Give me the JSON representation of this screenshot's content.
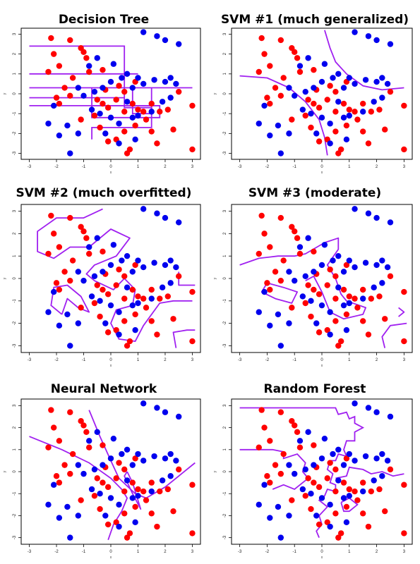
{
  "colors": {
    "class_a": "#ff0000",
    "class_b": "#0000ee",
    "boundary": "#a020f0",
    "frame": "#000000"
  },
  "axis": {
    "x_ticks": [
      "-3",
      "-2",
      "-1",
      "0",
      "1",
      "2",
      "3"
    ],
    "y_ticks": [
      "-3",
      "-2",
      "-1",
      "0",
      "1",
      "2",
      "3"
    ],
    "xlabel": "x",
    "ylabel": "y"
  },
  "panels": [
    {
      "title": "Decision Tree"
    },
    {
      "title": "SVM #1 (much generalized)"
    },
    {
      "title": "SVM #2 (much overfitted)"
    },
    {
      "title": "SVM #3 (moderate)"
    },
    {
      "title": "Neural Network"
    },
    {
      "title": "Random Forest"
    }
  ],
  "chart_data": {
    "type": "scatter",
    "xlim": [
      -3.3,
      3.3
    ],
    "ylim": [
      -3.3,
      3.3
    ],
    "grid": false,
    "series": [
      {
        "color": "#ff0000",
        "points": [
          [
            -2.2,
            2.8
          ],
          [
            -2.1,
            2.0
          ],
          [
            -1.5,
            2.7
          ],
          [
            -1.1,
            2.3
          ],
          [
            -1.0,
            2.1
          ],
          [
            -0.9,
            1.8
          ],
          [
            -1.9,
            1.4
          ],
          [
            -0.8,
            1.1
          ],
          [
            -1.4,
            0.8
          ],
          [
            -0.3,
            1.2
          ],
          [
            -2.3,
            1.1
          ],
          [
            -1.7,
            0.3
          ],
          [
            -0.2,
            0.2
          ],
          [
            -0.5,
            -0.3
          ],
          [
            -0.3,
            -0.5
          ],
          [
            -0.1,
            -0.7
          ],
          [
            0.2,
            -0.3
          ],
          [
            0.5,
            -0.9
          ],
          [
            0.8,
            -0.5
          ],
          [
            1.0,
            -0.8
          ],
          [
            1.2,
            -0.9
          ],
          [
            1.5,
            -0.5
          ],
          [
            1.8,
            -0.9
          ],
          [
            2.1,
            -0.8
          ],
          [
            2.3,
            -1.8
          ],
          [
            1.5,
            -1.9
          ],
          [
            0.5,
            -1.9
          ],
          [
            0.2,
            -2.3
          ],
          [
            -0.1,
            -2.4
          ],
          [
            0.7,
            -2.8
          ],
          [
            -0.6,
            -1.1
          ],
          [
            -1.1,
            -1.3
          ],
          [
            -1.9,
            -0.5
          ],
          [
            -2.0,
            -0.2
          ],
          [
            -1.5,
            -0.1
          ],
          [
            0.3,
            0.4
          ],
          [
            0.5,
            0.1
          ],
          [
            0.9,
            0.6
          ],
          [
            1.3,
            -1.3
          ],
          [
            0.9,
            -1.6
          ],
          [
            3.0,
            -0.6
          ],
          [
            3.0,
            -2.8
          ],
          [
            0.6,
            -3.0
          ],
          [
            -0.4,
            -1.7
          ],
          [
            1.7,
            -2.5
          ],
          [
            2.5,
            0.1
          ]
        ]
      },
      {
        "color": "#0000ee",
        "points": [
          [
            1.2,
            3.1
          ],
          [
            1.7,
            2.9
          ],
          [
            2.0,
            2.7
          ],
          [
            2.5,
            2.5
          ],
          [
            -0.5,
            1.8
          ],
          [
            0.1,
            1.5
          ],
          [
            0.6,
            1.0
          ],
          [
            1.0,
            0.8
          ],
          [
            1.2,
            0.5
          ],
          [
            1.6,
            0.7
          ],
          [
            2.0,
            0.6
          ],
          [
            2.4,
            0.5
          ],
          [
            0.4,
            0.8
          ],
          [
            -0.6,
            0.1
          ],
          [
            -1.0,
            -0.1
          ],
          [
            -1.2,
            0.3
          ],
          [
            -2.1,
            -0.6
          ],
          [
            -1.6,
            -1.6
          ],
          [
            -2.3,
            -1.5
          ],
          [
            -1.9,
            -2.1
          ],
          [
            -1.2,
            -2.0
          ],
          [
            -0.7,
            -0.8
          ],
          [
            -0.4,
            -1.0
          ],
          [
            0.0,
            -1.2
          ],
          [
            0.3,
            -1.5
          ],
          [
            0.6,
            -0.4
          ],
          [
            0.8,
            -1.2
          ],
          [
            1.0,
            -1.1
          ],
          [
            1.5,
            -0.9
          ],
          [
            1.9,
            -0.4
          ],
          [
            2.2,
            -0.2
          ],
          [
            -0.2,
            -2.0
          ],
          [
            -1.5,
            -3.0
          ],
          [
            0.9,
            -2.3
          ],
          [
            0.3,
            -2.5
          ],
          [
            -0.3,
            0.3
          ],
          [
            0.0,
            0.6
          ],
          [
            0.8,
            0.3
          ],
          [
            2.2,
            0.8
          ],
          [
            -0.8,
            1.4
          ]
        ]
      }
    ]
  }
}
